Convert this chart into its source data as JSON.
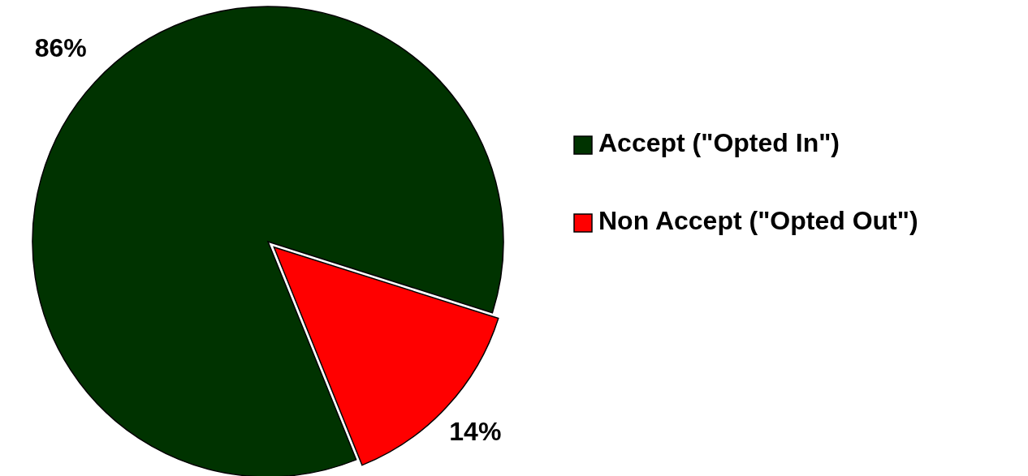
{
  "chart_data": {
    "type": "pie",
    "categories": [
      "Accept (\"Opted In\")",
      "Non Accept (\"Opted Out\")"
    ],
    "values": [
      86,
      14
    ],
    "colors": [
      "#003300",
      "#ff0000"
    ],
    "value_labels": [
      "86%",
      "14%"
    ],
    "legend": "right"
  }
}
